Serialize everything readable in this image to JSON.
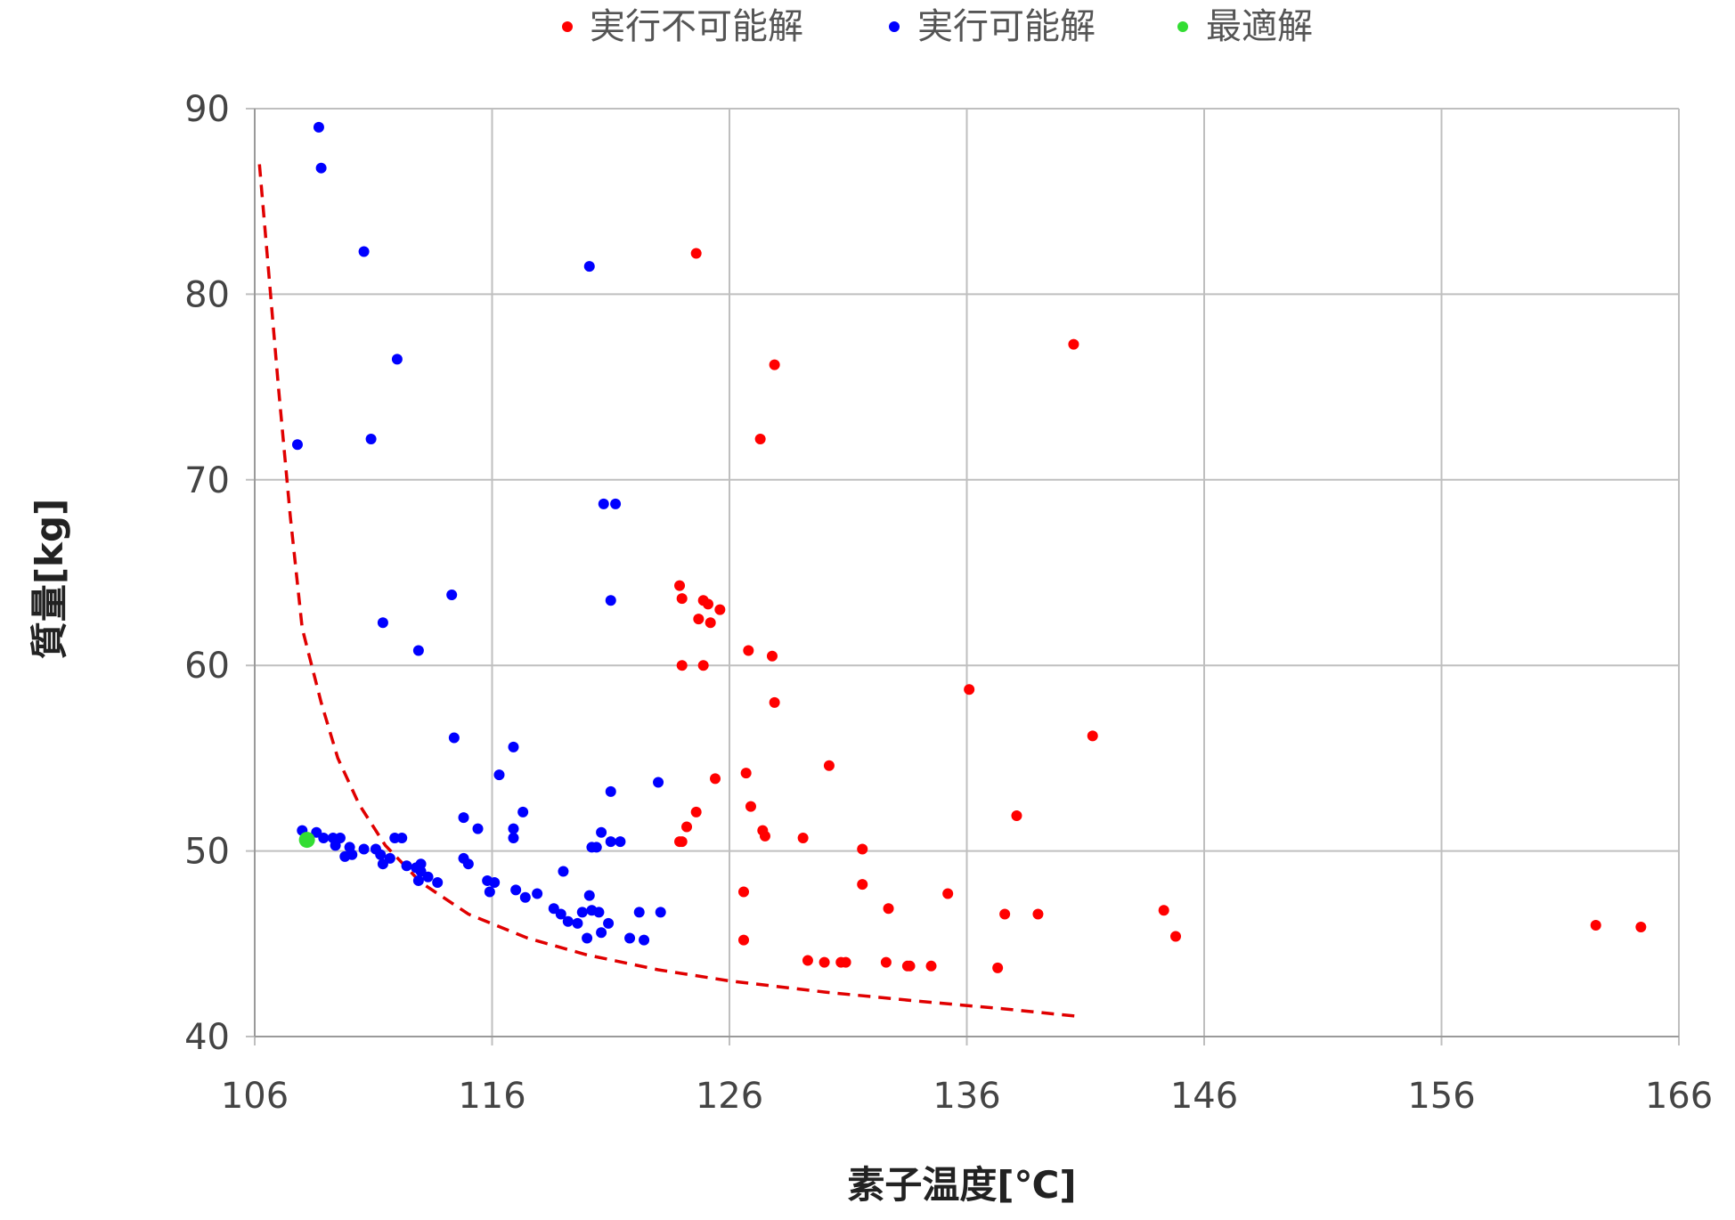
{
  "chart_data": {
    "type": "scatter",
    "title": "",
    "xlabel": "素子温度[℃]",
    "ylabel": "質量[kg]",
    "xlim": [
      106,
      166
    ],
    "ylim": [
      40,
      90
    ],
    "xticks": [
      106,
      116,
      126,
      136,
      146,
      156,
      166
    ],
    "yticks": [
      40,
      50,
      60,
      70,
      80,
      90
    ],
    "grid": true,
    "legend_position": "top-center",
    "series": [
      {
        "name": "実行不可能解",
        "color": "#ff0000",
        "points": [
          [
            124.6,
            82.2
          ],
          [
            127.9,
            76.2
          ],
          [
            127.3,
            72.2
          ],
          [
            140.5,
            77.3
          ],
          [
            123.9,
            64.3
          ],
          [
            124.0,
            63.6
          ],
          [
            124.9,
            63.5
          ],
          [
            125.1,
            63.3
          ],
          [
            125.6,
            63.0
          ],
          [
            124.7,
            62.5
          ],
          [
            125.2,
            62.3
          ],
          [
            126.8,
            60.8
          ],
          [
            127.8,
            60.5
          ],
          [
            124.0,
            60.0
          ],
          [
            124.9,
            60.0
          ],
          [
            127.9,
            58.0
          ],
          [
            136.1,
            58.7
          ],
          [
            141.3,
            56.2
          ],
          [
            125.4,
            53.9
          ],
          [
            126.7,
            54.2
          ],
          [
            130.2,
            54.6
          ],
          [
            126.9,
            52.4
          ],
          [
            124.6,
            52.1
          ],
          [
            138.1,
            51.9
          ],
          [
            124.2,
            51.3
          ],
          [
            127.4,
            51.1
          ],
          [
            127.5,
            50.8
          ],
          [
            129.1,
            50.7
          ],
          [
            123.9,
            50.5
          ],
          [
            124.0,
            50.5
          ],
          [
            131.6,
            50.1
          ],
          [
            131.6,
            48.2
          ],
          [
            126.6,
            47.8
          ],
          [
            135.2,
            47.7
          ],
          [
            132.7,
            46.9
          ],
          [
            137.6,
            46.6
          ],
          [
            139.0,
            46.6
          ],
          [
            144.3,
            46.8
          ],
          [
            144.8,
            45.4
          ],
          [
            126.6,
            45.2
          ],
          [
            129.3,
            44.1
          ],
          [
            130.0,
            44.0
          ],
          [
            130.7,
            44.0
          ],
          [
            130.9,
            44.0
          ],
          [
            132.6,
            44.0
          ],
          [
            133.5,
            43.8
          ],
          [
            133.6,
            43.8
          ],
          [
            134.5,
            43.8
          ],
          [
            137.3,
            43.7
          ],
          [
            162.5,
            46.0
          ],
          [
            164.4,
            45.9
          ]
        ]
      },
      {
        "name": "実行可能解",
        "color": "#0000ff",
        "points": [
          [
            108.7,
            89.0
          ],
          [
            108.8,
            86.8
          ],
          [
            110.6,
            82.3
          ],
          [
            120.1,
            81.5
          ],
          [
            112.0,
            76.5
          ],
          [
            107.8,
            71.9
          ],
          [
            110.9,
            72.2
          ],
          [
            120.7,
            68.7
          ],
          [
            121.2,
            68.7
          ],
          [
            114.3,
            63.8
          ],
          [
            121.0,
            63.5
          ],
          [
            111.4,
            62.3
          ],
          [
            112.9,
            60.8
          ],
          [
            114.4,
            56.1
          ],
          [
            116.9,
            55.6
          ],
          [
            116.3,
            54.1
          ],
          [
            123.0,
            53.7
          ],
          [
            121.0,
            53.2
          ],
          [
            114.8,
            51.8
          ],
          [
            117.3,
            52.1
          ],
          [
            115.4,
            51.2
          ],
          [
            116.9,
            51.2
          ],
          [
            116.9,
            50.7
          ],
          [
            120.6,
            51.0
          ],
          [
            121.0,
            50.5
          ],
          [
            121.4,
            50.5
          ],
          [
            120.2,
            50.2
          ],
          [
            120.4,
            50.2
          ],
          [
            108.0,
            51.1
          ],
          [
            108.6,
            51.0
          ],
          [
            108.9,
            50.7
          ],
          [
            109.3,
            50.7
          ],
          [
            109.6,
            50.7
          ],
          [
            109.4,
            50.3
          ],
          [
            110.0,
            50.2
          ],
          [
            110.6,
            50.1
          ],
          [
            111.1,
            50.1
          ],
          [
            111.9,
            50.7
          ],
          [
            112.2,
            50.7
          ],
          [
            109.8,
            49.7
          ],
          [
            110.1,
            49.8
          ],
          [
            111.3,
            49.8
          ],
          [
            111.7,
            49.6
          ],
          [
            111.4,
            49.3
          ],
          [
            112.4,
            49.2
          ],
          [
            112.8,
            49.1
          ],
          [
            113.0,
            49.3
          ],
          [
            113.0,
            48.9
          ],
          [
            113.3,
            48.6
          ],
          [
            113.7,
            48.3
          ],
          [
            112.9,
            48.4
          ],
          [
            114.8,
            49.6
          ],
          [
            115.0,
            49.3
          ],
          [
            115.8,
            48.4
          ],
          [
            116.1,
            48.3
          ],
          [
            115.9,
            47.8
          ],
          [
            117.0,
            47.9
          ],
          [
            117.4,
            47.5
          ],
          [
            117.9,
            47.7
          ],
          [
            118.6,
            46.9
          ],
          [
            118.9,
            46.6
          ],
          [
            119.2,
            46.2
          ],
          [
            119.8,
            46.7
          ],
          [
            120.2,
            46.8
          ],
          [
            119.0,
            48.9
          ],
          [
            120.1,
            47.6
          ],
          [
            120.5,
            46.7
          ],
          [
            119.6,
            46.1
          ],
          [
            120.9,
            46.1
          ],
          [
            122.2,
            46.7
          ],
          [
            123.1,
            46.7
          ],
          [
            120.6,
            45.6
          ],
          [
            120.0,
            45.3
          ],
          [
            121.8,
            45.3
          ],
          [
            122.4,
            45.2
          ]
        ]
      },
      {
        "name": "最適解",
        "color": "#33dd33",
        "points": [
          [
            108.2,
            50.6
          ]
        ]
      }
    ],
    "boundary_curve": {
      "color": "#e00000",
      "style": "dashed",
      "points": [
        [
          106.2,
          87.0
        ],
        [
          106.6,
          81.0
        ],
        [
          107.0,
          75.0
        ],
        [
          107.5,
          68.0
        ],
        [
          108.0,
          62.0
        ],
        [
          108.8,
          58.0
        ],
        [
          109.5,
          55.0
        ],
        [
          110.4,
          52.5
        ],
        [
          111.5,
          50.3
        ],
        [
          113.0,
          48.3
        ],
        [
          115.0,
          46.6
        ],
        [
          117.5,
          45.3
        ],
        [
          120.0,
          44.4
        ],
        [
          123.0,
          43.6
        ],
        [
          126.0,
          43.0
        ],
        [
          130.0,
          42.4
        ],
        [
          134.0,
          41.9
        ],
        [
          137.5,
          41.5
        ],
        [
          140.6,
          41.1
        ]
      ]
    }
  }
}
